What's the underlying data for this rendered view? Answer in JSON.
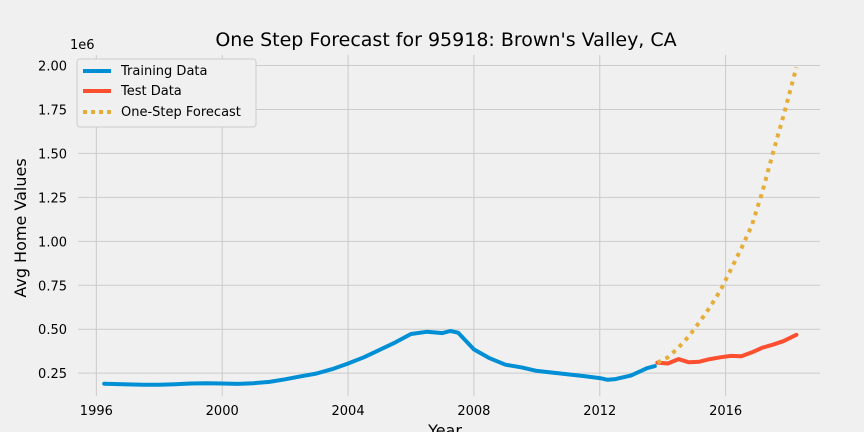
{
  "chart_data": {
    "type": "line",
    "title": "One Step Forecast for 95918: Brown's Valley, CA",
    "xlabel": "Year",
    "ylabel": "Avg Home Values",
    "y_offset_label": "1e6",
    "xlim": [
      "1995-06",
      "2019-01"
    ],
    "ylim": [
      0.12,
      2.06
    ],
    "x_ticks": [
      "1996",
      "2000",
      "2004",
      "2008",
      "2012",
      "2016"
    ],
    "y_ticks": [
      "0.25",
      "0.50",
      "0.75",
      "1.00",
      "1.25",
      "1.50",
      "1.75",
      "2.00"
    ],
    "grid": true,
    "legend_position": "top-left",
    "series": [
      {
        "name": "Training Data",
        "color": "#008fd5",
        "style": "solid",
        "x": [
          "1996-04",
          "1997-01",
          "1997-07",
          "1998-01",
          "1998-07",
          "1999-01",
          "1999-07",
          "2000-01",
          "2000-07",
          "2001-01",
          "2001-07",
          "2002-01",
          "2002-07",
          "2003-01",
          "2003-07",
          "2004-01",
          "2004-07",
          "2005-01",
          "2005-07",
          "2006-01",
          "2006-07",
          "2007-01",
          "2007-04",
          "2007-07",
          "2008-01",
          "2008-07",
          "2009-01",
          "2009-07",
          "2010-01",
          "2010-07",
          "2011-01",
          "2011-07",
          "2012-01",
          "2012-04",
          "2012-07",
          "2013-01",
          "2013-07",
          "2013-10"
        ],
        "y": [
          0.19,
          0.186,
          0.184,
          0.184,
          0.187,
          0.191,
          0.192,
          0.191,
          0.189,
          0.193,
          0.2,
          0.215,
          0.232,
          0.248,
          0.273,
          0.305,
          0.34,
          0.382,
          0.425,
          0.473,
          0.485,
          0.478,
          0.49,
          0.48,
          0.385,
          0.335,
          0.298,
          0.283,
          0.263,
          0.253,
          0.243,
          0.233,
          0.222,
          0.212,
          0.216,
          0.237,
          0.278,
          0.29
        ]
      },
      {
        "name": "Test Data",
        "color": "#fc4f30",
        "style": "solid",
        "x": [
          "2013-11",
          "2014-03",
          "2014-07",
          "2014-11",
          "2015-03",
          "2015-07",
          "2015-11",
          "2016-03",
          "2016-07",
          "2016-11",
          "2017-03",
          "2017-07",
          "2017-11",
          "2018-04"
        ],
        "y": [
          0.31,
          0.305,
          0.33,
          0.312,
          0.315,
          0.33,
          0.34,
          0.348,
          0.346,
          0.368,
          0.395,
          0.412,
          0.432,
          0.468
        ]
      },
      {
        "name": "One-Step Forecast",
        "color": "#e5ae38",
        "style": "dotted",
        "x": [
          "2013-11",
          "2014-03",
          "2014-07",
          "2014-11",
          "2015-03",
          "2015-07",
          "2015-11",
          "2016-03",
          "2016-07",
          "2016-11",
          "2017-03",
          "2017-07",
          "2017-11",
          "2018-04"
        ],
        "y": [
          0.31,
          0.34,
          0.395,
          0.46,
          0.54,
          0.625,
          0.72,
          0.84,
          0.96,
          1.09,
          1.28,
          1.5,
          1.71,
          1.99
        ]
      }
    ]
  }
}
